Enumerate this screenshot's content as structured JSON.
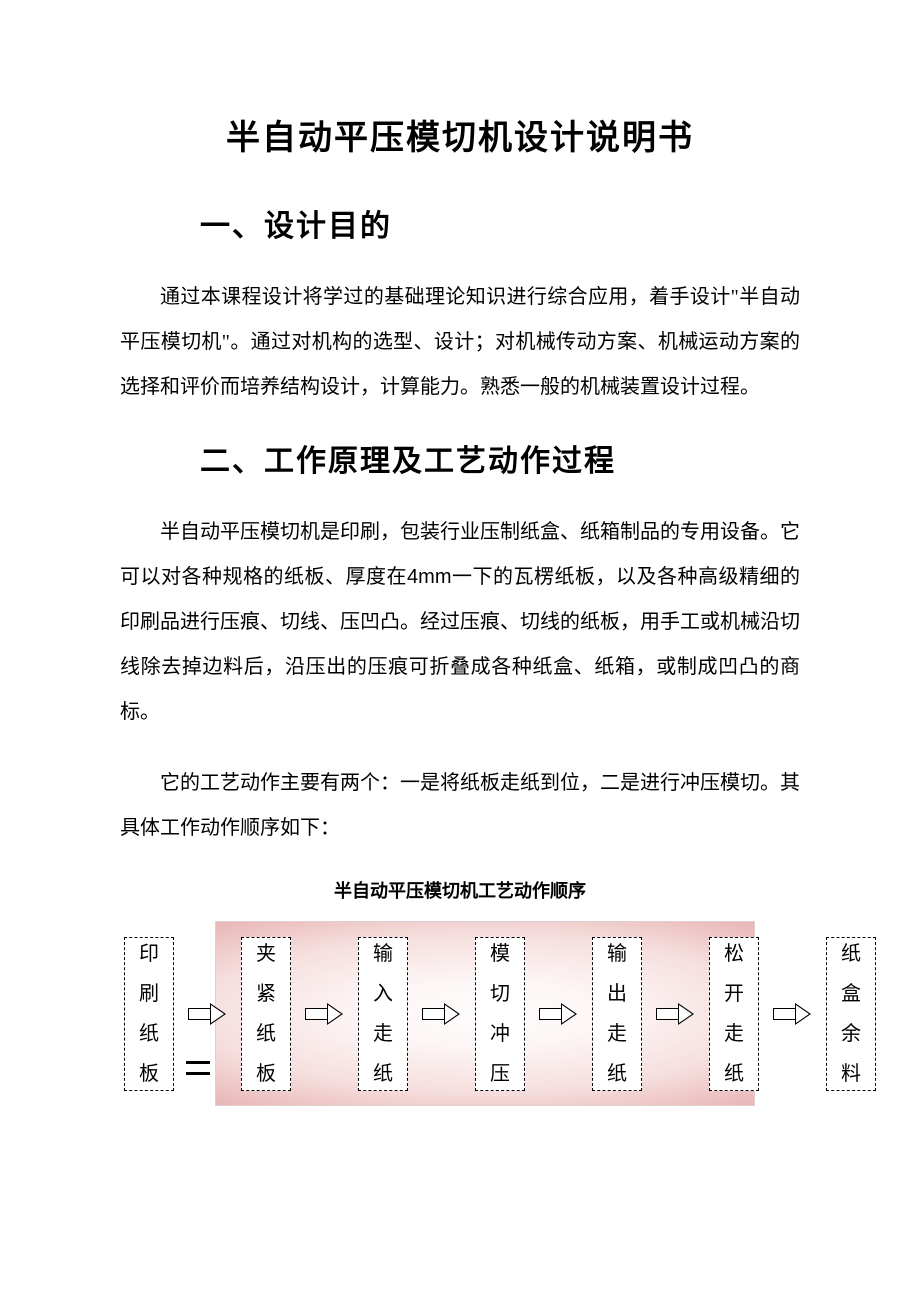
{
  "document": {
    "title": "半自动平压模切机设计说明书",
    "section1": {
      "heading": "一、设计目的",
      "para1": "通过本课程设计将学过的基础理论知识进行综合应用，着手设计\"半自动平压模切机\"。通过对机构的选型、设计；对机械传动方案、机械运动方案的选择和评价而培养结构设计，计算能力。熟悉一般的机械装置设计过程。"
    },
    "section2": {
      "heading": "二、工作原理及工艺动作过程",
      "para1_a": "半自动平压模切机是印刷，包装行业压制纸盒、纸箱制品的专用设备。它可以对各种规格的纸板、厚度在",
      "para1_thickness": "4mm",
      "para1_b": "一下的瓦楞纸板，以及各种高级精细的印刷品进行压痕、切线、压凹凸。经过压痕、切线的纸板，用手工或机械沿切线除去掉边料后，沿压出的压痕可折叠成各种纸盒、纸箱，或制成凹凸的商标。",
      "para2": "它的工艺动作主要有两个：一是将纸板走纸到位，二是进行冲压模切。其具体工作动作顺序如下："
    },
    "flowchart": {
      "type": "flowchart",
      "title": "半自动平压模切机工艺动作顺序",
      "background_gradient_center": "#fefcfc",
      "background_gradient_mid": "#f6dede",
      "background_gradient_edge": "#cd8888",
      "node_border_style": "dashed",
      "node_border_color": "#000000",
      "node_bg_color": "#ffffff",
      "node_font_size": 20,
      "arrow_fill": "#ffffff",
      "arrow_stroke": "#000000",
      "nodes": [
        {
          "id": "n1",
          "c1": "印",
          "c2": "刷",
          "c3": "纸",
          "c4": "板"
        },
        {
          "id": "n2",
          "c1": "夹",
          "c2": "紧",
          "c3": "纸",
          "c4": "板"
        },
        {
          "id": "n3",
          "c1": "输",
          "c2": "入",
          "c3": "走",
          "c4": "纸"
        },
        {
          "id": "n4",
          "c1": "模",
          "c2": "切",
          "c3": "冲",
          "c4": "压"
        },
        {
          "id": "n5",
          "c1": "输",
          "c2": "出",
          "c3": "走",
          "c4": "纸"
        },
        {
          "id": "n6",
          "c1": "松",
          "c2": "开",
          "c3": "走",
          "c4": "纸"
        },
        {
          "id": "n7",
          "c1": "纸",
          "c2": "盒",
          "c3": "余",
          "c4": "料"
        }
      ]
    }
  }
}
